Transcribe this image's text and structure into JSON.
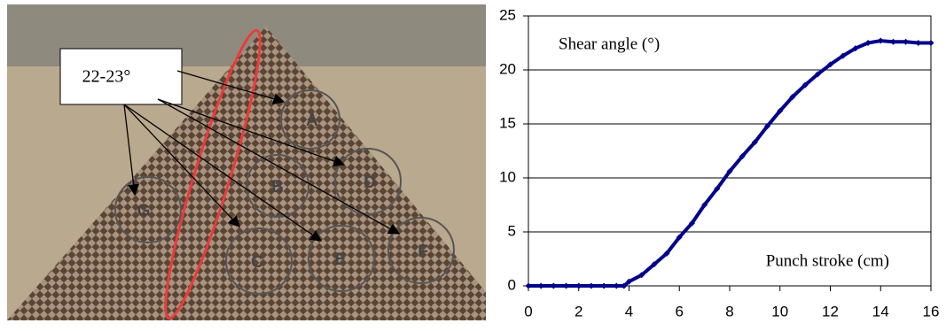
{
  "figure": {
    "callout": "22-23°",
    "labels": [
      "A",
      "B",
      "C",
      "D",
      "E",
      "F",
      "G"
    ]
  },
  "chart_data": {
    "type": "line",
    "annotations": [
      "Shear angle (°)",
      "Punch stroke (cm)"
    ],
    "x": [
      0,
      0.5,
      1,
      1.5,
      2,
      2.5,
      3,
      3.5,
      3.8,
      4,
      4.5,
      5,
      5.5,
      6,
      6.5,
      7,
      7.5,
      8,
      8.5,
      9,
      9.5,
      10,
      10.5,
      11,
      11.5,
      12,
      12.5,
      13,
      13.5,
      14,
      14.5,
      15,
      15.5,
      16
    ],
    "values": [
      0,
      0,
      0,
      0,
      0,
      0,
      0,
      0,
      0,
      0.4,
      1.0,
      2.0,
      3.0,
      4.5,
      5.8,
      7.5,
      9.0,
      10.6,
      12.0,
      13.3,
      14.8,
      16.2,
      17.5,
      18.6,
      19.6,
      20.5,
      21.3,
      22.0,
      22.5,
      22.7,
      22.6,
      22.6,
      22.5,
      22.5
    ],
    "color": "#00008b",
    "xlim": [
      0,
      16
    ],
    "xticks": [
      0,
      2,
      4,
      6,
      8,
      10,
      12,
      14,
      16
    ],
    "ylim": [
      0,
      25
    ],
    "yticks": [
      0,
      5,
      10,
      15,
      20,
      25
    ],
    "grid": true
  }
}
